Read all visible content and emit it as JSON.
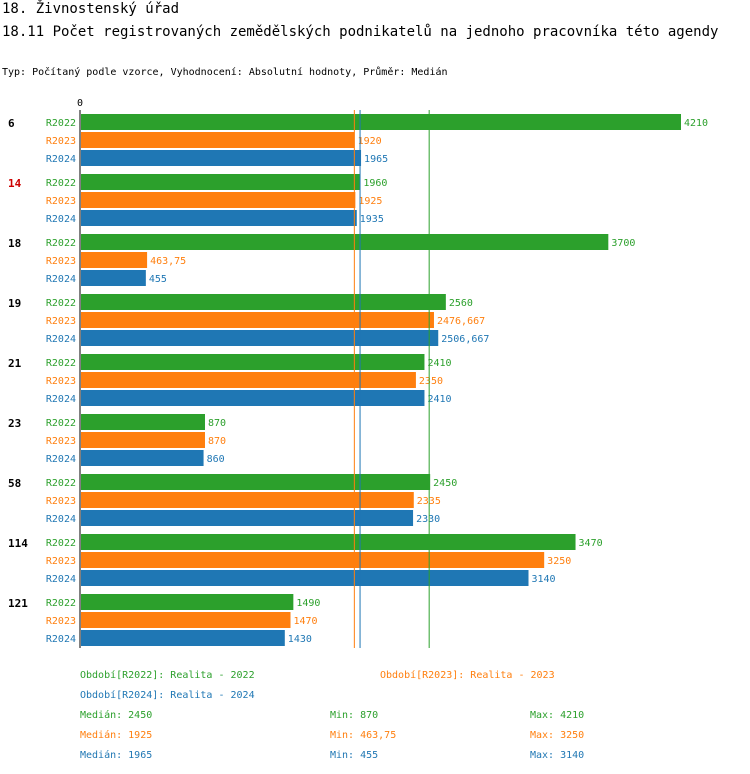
{
  "header": {
    "title": "18. Živnostenský úřad",
    "subtitle": "18.11 Počet  registrovaných zemědělských podnikatelů na jednoho pracovníka  této agendy",
    "type_line": "Typ: Počítaný podle vzorce, Vyhodnocení: Absolutní hodnoty, Průměr: Medián"
  },
  "colors": {
    "R2022": "#2ca02c",
    "R2023": "#ff7f0e",
    "R2024": "#1f77b4",
    "highlight": "#cc0000",
    "axis": "#000000"
  },
  "chart_data": {
    "type": "bar",
    "orientation": "horizontal",
    "title": "18.11 Počet  registrovaných zemědělských podnikatelů na jednoho pracovníka  této agendy",
    "xlim": [
      0,
      4210
    ],
    "x_tick_labels": [
      "0"
    ],
    "categories": [
      "6",
      "14",
      "18",
      "19",
      "21",
      "23",
      "58",
      "114",
      "121"
    ],
    "highlighted_category": "14",
    "series": [
      {
        "name": "R2022",
        "values": [
          4210,
          1960,
          3700,
          2560,
          2410,
          870,
          2450,
          3470,
          1490
        ],
        "labels": [
          "4210",
          "1960",
          "3700",
          "2560",
          "2410",
          "870",
          "2450",
          "3470",
          "1490"
        ]
      },
      {
        "name": "R2023",
        "values": [
          1920,
          1925,
          463.75,
          2476.667,
          2350,
          870,
          2335,
          3250,
          1470
        ],
        "labels": [
          "1920",
          "1925",
          "463,75",
          "2476,667",
          "2350",
          "870",
          "2335",
          "3250",
          "1470"
        ]
      },
      {
        "name": "R2024",
        "values": [
          1965,
          1935,
          455,
          2506.667,
          2410,
          860,
          2330,
          3140,
          1430
        ],
        "labels": [
          "1965",
          "1935",
          "455",
          "2506,667",
          "2410",
          "860",
          "2330",
          "3140",
          "1430"
        ]
      }
    ],
    "median_lines": {
      "R2022": 2450,
      "R2023": 1925,
      "R2024": 1965
    }
  },
  "legend": {
    "periods": [
      {
        "key": "R2022",
        "text": "Období[R2022]: Realita - 2022"
      },
      {
        "key": "R2023",
        "text": "Období[R2023]: Realita - 2023"
      },
      {
        "key": "R2024",
        "text": "Období[R2024]: Realita - 2024"
      }
    ],
    "stats": [
      {
        "key": "R2022",
        "median": "Medián: 2450",
        "min": "Min: 870",
        "max": "Max: 4210"
      },
      {
        "key": "R2023",
        "median": "Medián: 1925",
        "min": "Min: 463,75",
        "max": "Max: 3250"
      },
      {
        "key": "R2024",
        "median": "Medián: 1965",
        "min": "Min: 455",
        "max": "Max: 3140"
      }
    ]
  }
}
